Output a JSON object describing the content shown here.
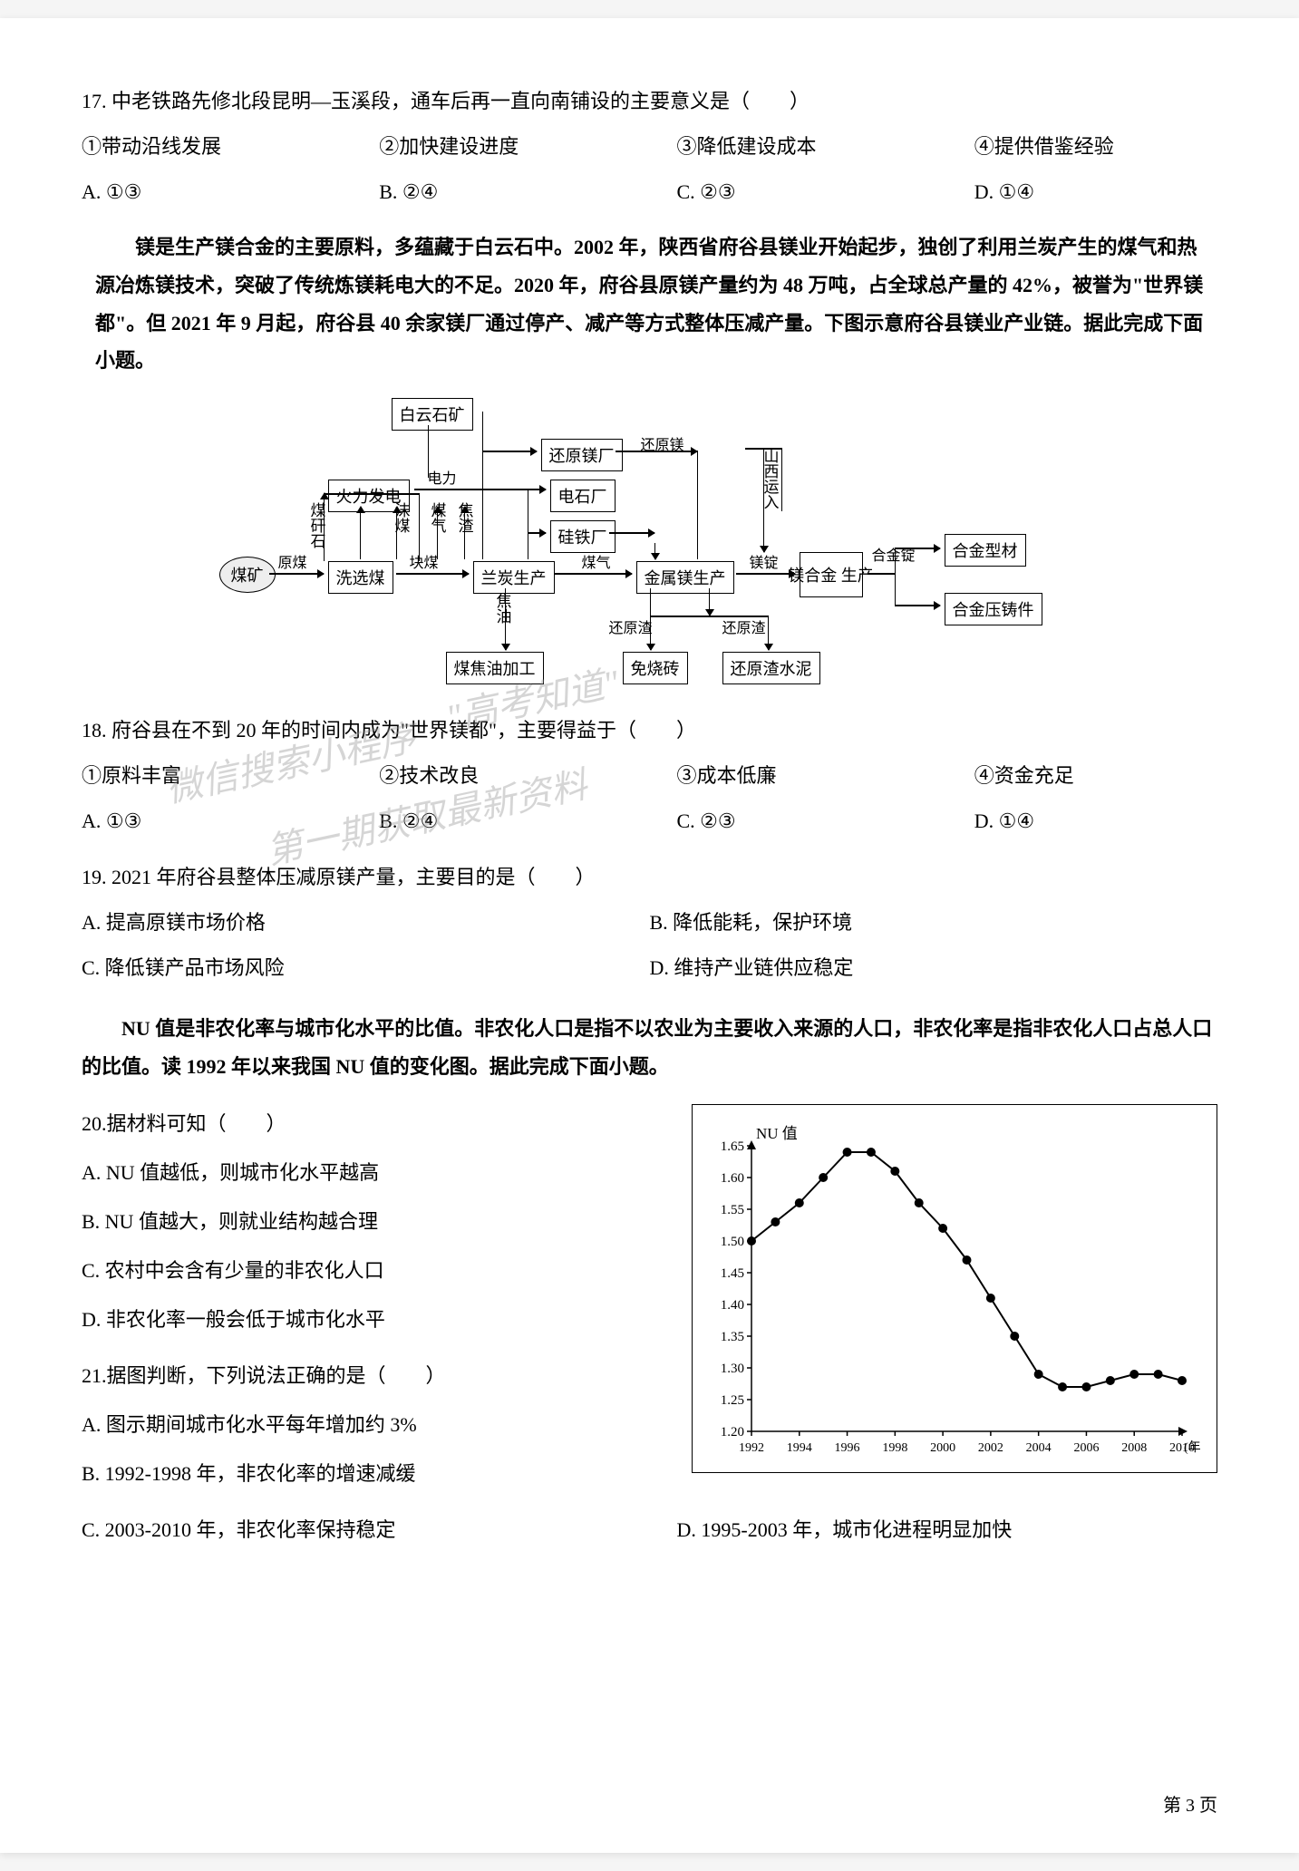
{
  "q17": {
    "stem": "17. 中老铁路先修北段昆明—玉溪段，通车后再一直向南铺设的主要意义是（　　）",
    "opts": [
      "①带动沿线发展",
      "②加快建设进度",
      "③降低建设成本",
      "④提供借鉴经验"
    ],
    "choices": [
      "A. ①③",
      "B. ②④",
      "C. ②③",
      "D. ①④"
    ]
  },
  "passage1": "镁是生产镁合金的主要原料，多蕴藏于白云石中。2002 年，陕西省府谷县镁业开始起步，独创了利用兰炭产生的煤气和热源冶炼镁技术，突破了传统炼镁耗电大的不足。2020 年，府谷县原镁产量约为 48 万吨，占全球总产量的 42%，被誉为\"世界镁都\"。但 2021 年 9 月起，府谷县 40 余家镁厂通过停产、减产等方式整体压减产量。下图示意府谷县镁业产业链。据此完成下面小题。",
  "flowchart": {
    "boxes": {
      "baiyunshi": "白云石矿",
      "huoli": "火力发电",
      "xixuan": "洗选煤",
      "lantan": "兰炭生产",
      "huanyuan1": "还原镁厂",
      "dianshi": "电石厂",
      "guitie": "硅铁厂",
      "jinshu": "金属镁生产",
      "meihejin": "镁合金\n生产",
      "hejinxing": "合金型材",
      "hejinya": "合金压铸件",
      "meijiao": "煤焦油加工",
      "mianshao": "免烧砖",
      "huanyuanzha": "还原渣水泥"
    },
    "labels": {
      "yuanmei": "原煤",
      "meigan": "煤矸石",
      "dianli": "电力",
      "meiqi1": "煤气",
      "jiaozha": "焦渣",
      "momei": "沫煤",
      "kuaimei": "块煤",
      "lantan_v": "兰炭",
      "huanyuanmei": "还原镁",
      "guitie_l": "硅铁",
      "meiqi2": "煤气",
      "meiding": "镁锭",
      "hejinding": "合金锭",
      "jiaoyou": "焦油",
      "huanyuanzha1": "还原渣",
      "huanyuanzha2": "还原渣",
      "shanxi": "山西运入"
    },
    "oval": "煤矿"
  },
  "q18": {
    "stem": "18. 府谷县在不到 20 年的时间内成为\"世界镁都\"，主要得益于（　　）",
    "opts": [
      "①原料丰富",
      "②技术改良",
      "③成本低廉",
      "④资金充足"
    ],
    "choices": [
      "A. ①③",
      "B. ②④",
      "C. ②③",
      "D. ①④"
    ]
  },
  "q19": {
    "stem": "19. 2021 年府谷县整体压减原镁产量，主要目的是（　　）",
    "choices": [
      "A. 提高原镁市场价格",
      "B. 降低能耗，保护环境",
      "C. 降低镁产品市场风险",
      "D. 维持产业链供应稳定"
    ]
  },
  "passage2": "NU 值是非农化率与城市化水平的比值。非农化人口是指不以农业为主要收入来源的人口，非农化率是指非农化人口占总人口的比值。读 1992 年以来我国 NU 值的变化图。据此完成下面小题。",
  "q20": {
    "stem": "20.据材料可知（　　）",
    "choices": [
      "A. NU 值越低，则城市化水平越高",
      "B. NU 值越大，则就业结构越合理",
      "C. 农村中会含有少量的非农化人口",
      "D. 非农化率一般会低于城市化水平"
    ]
  },
  "q21": {
    "stem": "21.据图判断，下列说法正确的是（　　）",
    "choices": [
      "A. 图示期间城市化水平每年增加约 3%",
      "B. 1992-1998 年，非农化率的增速减缓",
      "C. 2003-2010 年，非农化率保持稳定",
      "D. 1995-2003 年，城市化进程明显加快"
    ]
  },
  "chart": {
    "title": "NU 值",
    "xlabel": "(年)",
    "ylim": [
      1.2,
      1.65
    ],
    "ytick_step": 0.05,
    "yticks": [
      "1.20",
      "1.25",
      "1.30",
      "1.35",
      "1.40",
      "1.45",
      "1.50",
      "1.55",
      "1.60",
      "1.65"
    ],
    "xticks": [
      "1992",
      "1994",
      "1996",
      "1998",
      "2000",
      "2002",
      "2004",
      "2006",
      "2008",
      "2010"
    ],
    "years": [
      1992,
      1993,
      1994,
      1995,
      1996,
      1997,
      1998,
      1999,
      2000,
      2001,
      2002,
      2003,
      2004,
      2005,
      2006,
      2007,
      2008,
      2009,
      2010
    ],
    "values": [
      1.5,
      1.53,
      1.56,
      1.6,
      1.64,
      1.64,
      1.61,
      1.56,
      1.52,
      1.47,
      1.41,
      1.35,
      1.29,
      1.27,
      1.27,
      1.28,
      1.29,
      1.29,
      1.28
    ],
    "line_color": "#000000",
    "marker_color": "#000000",
    "marker_size": 5,
    "background_color": "#ffffff",
    "axis_color": "#000000"
  },
  "watermarks": {
    "w1": "微信搜索小程序",
    "w2": "\"高考知道\"",
    "w3": "第一期获取最新资料"
  },
  "page_num": "第 3 页"
}
